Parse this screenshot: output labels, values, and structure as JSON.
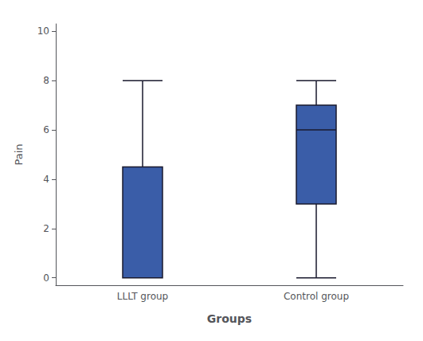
{
  "chart_data": {
    "type": "box",
    "categories": [
      "LLLT group",
      "Control group"
    ],
    "values": [
      {
        "whisker_low": 0,
        "q1": 0,
        "median": 0,
        "q3": 4.5,
        "whisker_high": 8
      },
      {
        "whisker_low": 0,
        "q1": 3,
        "median": 6,
        "q3": 7,
        "whisker_high": 8
      }
    ],
    "color": "#3A5DA8",
    "xlabel": "Groups",
    "ylabel": "Pain",
    "ylim": [
      -0.3,
      10.3
    ],
    "yticks": [
      0,
      2,
      4,
      6,
      8,
      10
    ],
    "grid": false
  }
}
